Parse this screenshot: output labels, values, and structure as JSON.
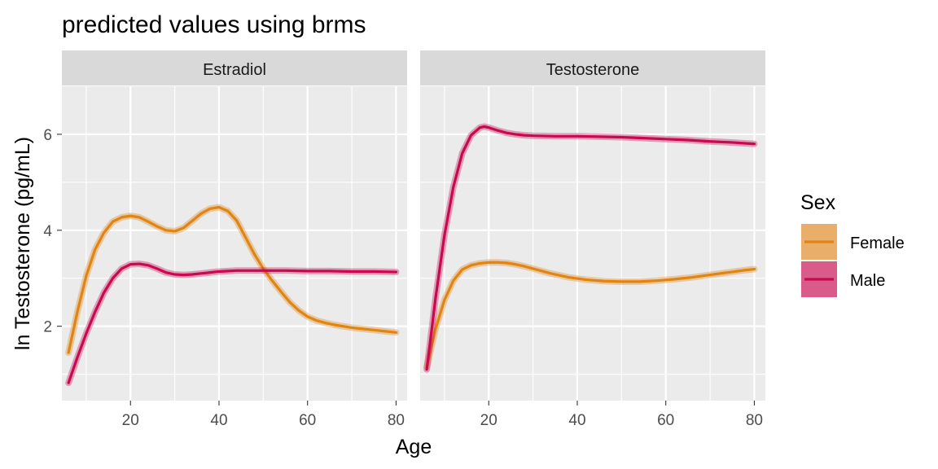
{
  "chart_data": {
    "type": "line",
    "title": "predicted values using brms",
    "xlabel": "Age",
    "ylabel": "ln Testosterone (pg/mL)",
    "xlim": [
      4.5,
      82.5
    ],
    "ylim": [
      0.45,
      7.0
    ],
    "x_ticks": [
      20,
      40,
      60,
      80
    ],
    "y_ticks": [
      2,
      4,
      6
    ],
    "grid": true,
    "legend": {
      "title": "Sex",
      "position": "right",
      "entries": [
        {
          "label": "Female",
          "color": "#E08414",
          "fill": "#E8AE6A"
        },
        {
          "label": "Male",
          "color": "#C8094F",
          "fill": "#D95B89"
        }
      ]
    },
    "panels": [
      {
        "strip": "Estradiol",
        "series": [
          {
            "name": "Female",
            "color": "#E08414",
            "x": [
              6,
              8,
              10,
              12,
              14,
              16,
              18,
              20,
              22,
              24,
              26,
              28,
              30,
              32,
              34,
              36,
              38,
              40,
              42,
              44,
              46,
              48,
              50,
              52,
              54,
              56,
              58,
              60,
              62,
              64,
              66,
              68,
              70,
              72,
              74,
              76,
              78,
              80
            ],
            "y": [
              1.45,
              2.3,
              3.05,
              3.6,
              3.95,
              4.18,
              4.27,
              4.3,
              4.27,
              4.18,
              4.08,
              4.0,
              3.98,
              4.05,
              4.2,
              4.35,
              4.45,
              4.48,
              4.4,
              4.2,
              3.85,
              3.5,
              3.2,
              2.95,
              2.72,
              2.5,
              2.33,
              2.2,
              2.12,
              2.07,
              2.03,
              2.0,
              1.97,
              1.95,
              1.93,
              1.91,
              1.89,
              1.87
            ]
          },
          {
            "name": "Male",
            "color": "#C8094F",
            "x": [
              6,
              8,
              10,
              12,
              14,
              16,
              18,
              20,
              22,
              24,
              26,
              28,
              30,
              32,
              34,
              36,
              38,
              40,
              42,
              44,
              46,
              48,
              50,
              55,
              60,
              65,
              70,
              75,
              80
            ],
            "y": [
              0.82,
              1.35,
              1.85,
              2.3,
              2.7,
              3.0,
              3.2,
              3.29,
              3.3,
              3.27,
              3.2,
              3.12,
              3.08,
              3.07,
              3.08,
              3.1,
              3.12,
              3.14,
              3.15,
              3.16,
              3.16,
              3.16,
              3.16,
              3.16,
              3.15,
              3.15,
              3.14,
              3.14,
              3.13
            ]
          }
        ]
      },
      {
        "strip": "Testosterone",
        "series": [
          {
            "name": "Female",
            "color": "#E08414",
            "x": [
              6,
              8,
              10,
              12,
              14,
              16,
              18,
              20,
              22,
              24,
              26,
              28,
              30,
              34,
              38,
              42,
              46,
              50,
              54,
              58,
              62,
              66,
              70,
              74,
              78,
              80
            ],
            "y": [
              1.15,
              1.95,
              2.55,
              2.95,
              3.18,
              3.27,
              3.31,
              3.33,
              3.33,
              3.32,
              3.29,
              3.25,
              3.2,
              3.1,
              3.02,
              2.97,
              2.94,
              2.93,
              2.93,
              2.95,
              2.98,
              3.02,
              3.07,
              3.12,
              3.17,
              3.19
            ]
          },
          {
            "name": "Male",
            "color": "#C8094F",
            "x": [
              6,
              8,
              10,
              12,
              14,
              16,
              18,
              19,
              20,
              22,
              24,
              26,
              28,
              30,
              35,
              40,
              45,
              50,
              55,
              60,
              65,
              70,
              75,
              80
            ],
            "y": [
              1.1,
              2.6,
              3.9,
              4.9,
              5.6,
              5.98,
              6.14,
              6.16,
              6.14,
              6.08,
              6.03,
              6.0,
              5.98,
              5.97,
              5.96,
              5.96,
              5.95,
              5.94,
              5.92,
              5.9,
              5.88,
              5.85,
              5.83,
              5.8
            ]
          }
        ]
      }
    ]
  }
}
